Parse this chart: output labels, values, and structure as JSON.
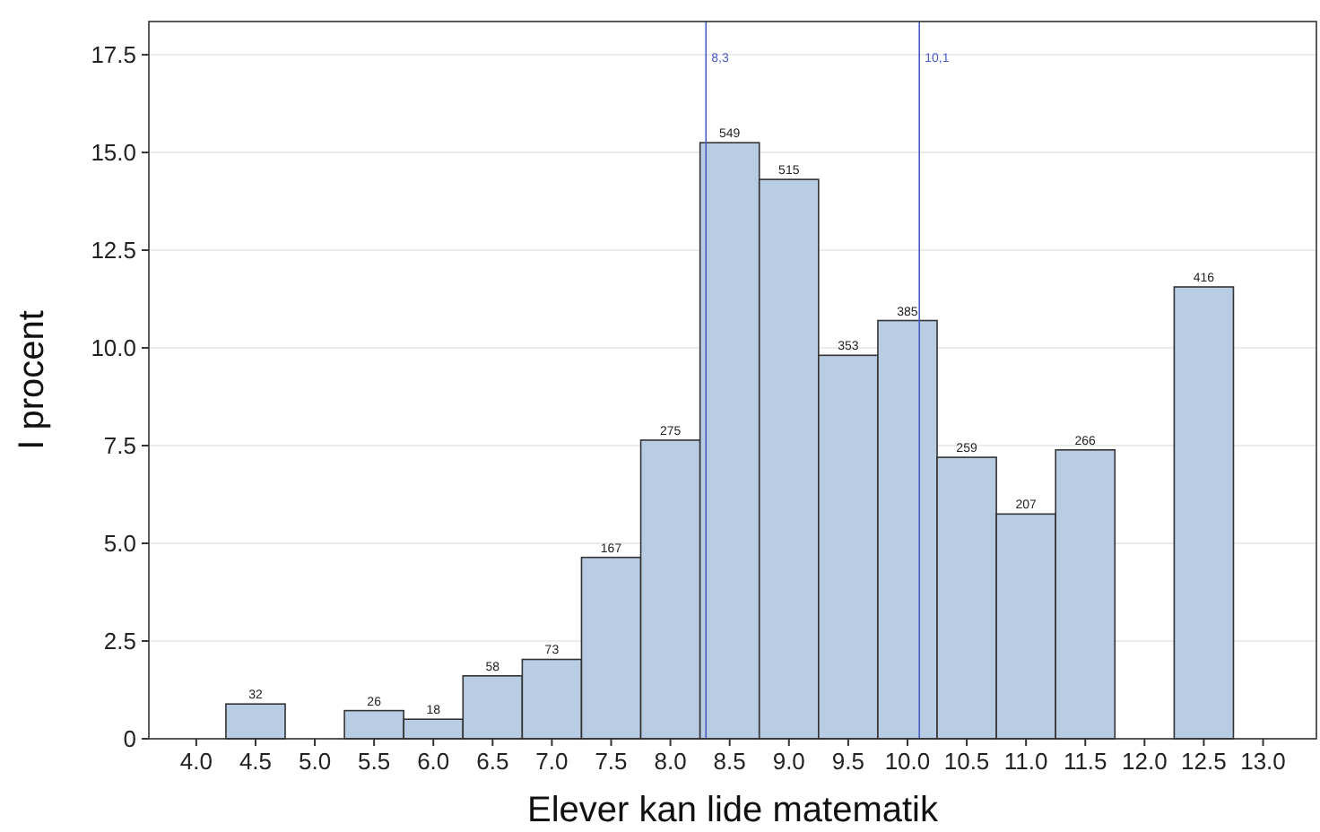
{
  "chart_data": {
    "type": "histogram",
    "xlabel": "Elever kan lide matematik",
    "ylabel": "I procent",
    "bins": [
      4.25,
      4.75,
      5.25,
      5.75,
      6.25,
      6.75,
      7.25,
      7.75,
      8.25,
      8.75,
      9.25,
      9.75,
      10.25,
      10.75,
      11.25,
      11.75,
      12.25,
      12.75
    ],
    "values": [
      0.89,
      0,
      0.72,
      0.5,
      1.61,
      2.03,
      4.64,
      7.64,
      15.25,
      14.31,
      9.81,
      10.7,
      7.2,
      5.75,
      7.39,
      0,
      11.56
    ],
    "annotations": [
      {
        "text": "32",
        "x": 4.5,
        "y": 0.89
      },
      {
        "text": "26",
        "x": 5.5,
        "y": 0.72
      },
      {
        "text": "18",
        "x": 6,
        "y": 0.5
      },
      {
        "text": "58",
        "x": 6.5,
        "y": 1.61
      },
      {
        "text": "73",
        "x": 7,
        "y": 2.03
      },
      {
        "text": "167",
        "x": 7.5,
        "y": 4.64
      },
      {
        "text": "275",
        "x": 8,
        "y": 7.64
      },
      {
        "text": "549",
        "x": 8.5,
        "y": 15.25
      },
      {
        "text": "515",
        "x": 9,
        "y": 14.31
      },
      {
        "text": "353",
        "x": 9.5,
        "y": 9.81
      },
      {
        "text": "385",
        "x": 10,
        "y": 10.7
      },
      {
        "text": "259",
        "x": 10.5,
        "y": 7.2
      },
      {
        "text": "207",
        "x": 11,
        "y": 5.75
      },
      {
        "text": "266",
        "x": 11.5,
        "y": 7.39
      },
      {
        "text": "416",
        "x": 12.5,
        "y": 11.56
      }
    ],
    "color": "#b8cce4",
    "xlim": [
      3.6,
      13.45
    ],
    "xticks": [
      {
        "value": 4,
        "label": "4.0"
      },
      {
        "value": 4.5,
        "label": "4.5"
      },
      {
        "value": 5,
        "label": "5.0"
      },
      {
        "value": 5.5,
        "label": "5.5"
      },
      {
        "value": 6,
        "label": "6.0"
      },
      {
        "value": 6.5,
        "label": "6.5"
      },
      {
        "value": 7,
        "label": "7.0"
      },
      {
        "value": 7.5,
        "label": "7.5"
      },
      {
        "value": 8,
        "label": "8.0"
      },
      {
        "value": 8.5,
        "label": "8.5"
      },
      {
        "value": 9,
        "label": "9.0"
      },
      {
        "value": 9.5,
        "label": "9.5"
      },
      {
        "value": 10,
        "label": "10.0"
      },
      {
        "value": 10.5,
        "label": "10.5"
      },
      {
        "value": 11,
        "label": "11.0"
      },
      {
        "value": 11.5,
        "label": "11.5"
      },
      {
        "value": 12,
        "label": "12.0"
      },
      {
        "value": 12.5,
        "label": "12.5"
      },
      {
        "value": 13,
        "label": "13.0"
      }
    ],
    "ylim": [
      0,
      18.35
    ],
    "yticks": [
      0,
      2.5,
      {
        "value": 5,
        "label": "5.0"
      },
      7.5,
      {
        "value": 10,
        "label": "10.0"
      },
      12.5,
      {
        "value": 15,
        "label": "15.0"
      },
      17.5
    ],
    "grid": "y",
    "ref_lines": [
      {
        "axis": "x",
        "value": 8.3,
        "label": "8,3",
        "color": "#4a5cc4"
      },
      {
        "axis": "x",
        "value": 10.1,
        "label": "10,1",
        "color": "#4a5cc4"
      }
    ]
  }
}
